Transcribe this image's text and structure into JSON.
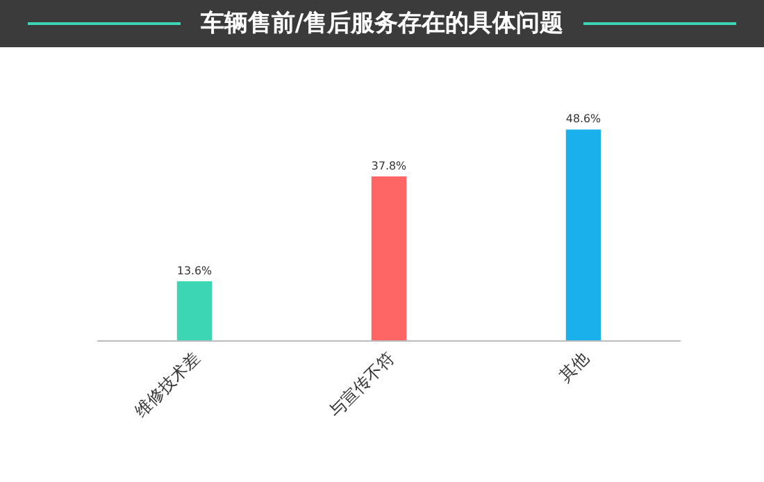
{
  "chart_data": {
    "type": "bar",
    "title": "车辆售前/售后服务存在的具体问题",
    "categories": [
      "维修技术差",
      "与宣传不符",
      "其他"
    ],
    "values": [
      13.6,
      37.8,
      48.6
    ],
    "colors": [
      "#3dd6b5",
      "#fe6666",
      "#1ab0eb"
    ],
    "value_labels": [
      "13.6%",
      "37.8%",
      "48.6%"
    ],
    "data_labels": true
  }
}
